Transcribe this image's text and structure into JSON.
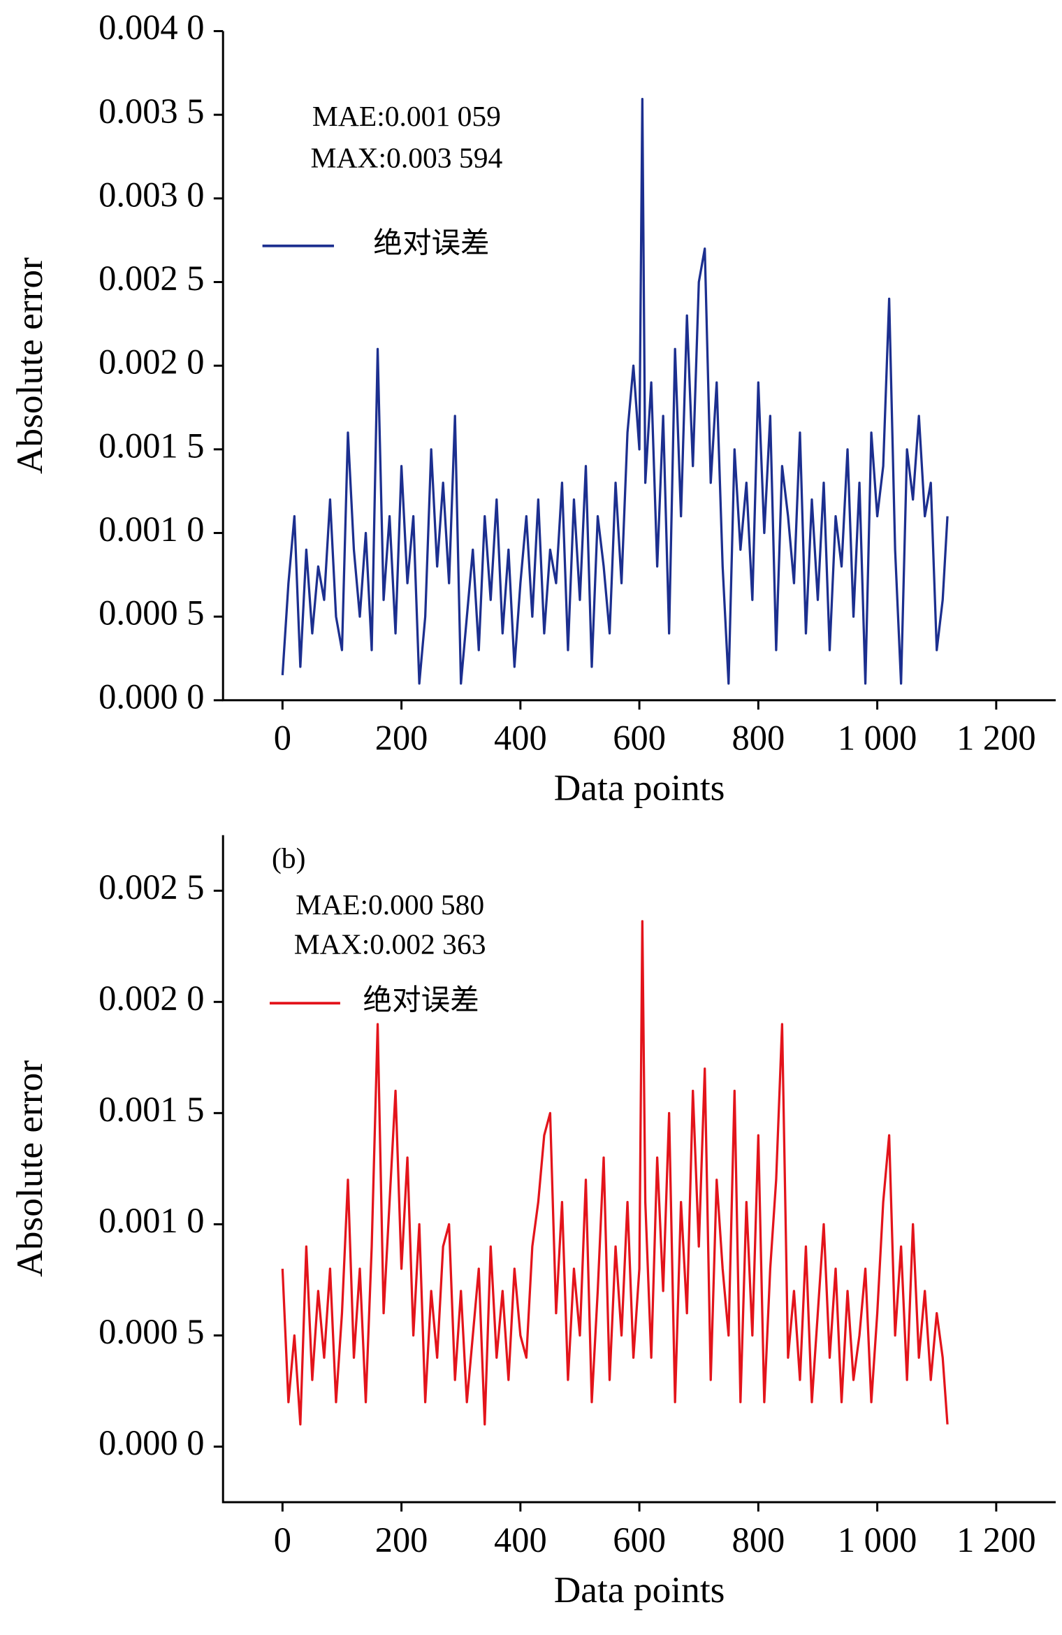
{
  "chart_data": [
    {
      "type": "line",
      "annotations": [
        "MAE:0.001 059",
        "MAX:0.003 594"
      ],
      "xlabel": "Data points",
      "ylabel": "Absolute error",
      "x": [
        0,
        10,
        20,
        30,
        40,
        50,
        60,
        70,
        80,
        90,
        100,
        110,
        120,
        130,
        140,
        150,
        160,
        170,
        180,
        190,
        200,
        210,
        220,
        230,
        240,
        250,
        260,
        270,
        280,
        290,
        300,
        310,
        320,
        330,
        340,
        350,
        360,
        370,
        380,
        390,
        400,
        410,
        420,
        430,
        440,
        450,
        460,
        470,
        480,
        490,
        500,
        510,
        520,
        530,
        540,
        550,
        560,
        570,
        580,
        590,
        600,
        605,
        610,
        620,
        630,
        640,
        650,
        660,
        670,
        680,
        690,
        700,
        710,
        720,
        730,
        740,
        750,
        760,
        770,
        780,
        790,
        800,
        810,
        820,
        830,
        840,
        850,
        860,
        870,
        880,
        890,
        900,
        910,
        920,
        930,
        940,
        950,
        960,
        970,
        980,
        990,
        1000,
        1010,
        1020,
        1030,
        1040,
        1050,
        1060,
        1070,
        1080,
        1090,
        1100,
        1110,
        1118
      ],
      "series": [
        {
          "name": "绝对误差",
          "color": "#1c2f8f",
          "values": [
            0.00015,
            0.0007,
            0.0011,
            0.0002,
            0.0009,
            0.0004,
            0.0008,
            0.0006,
            0.0012,
            0.0005,
            0.0003,
            0.0016,
            0.0009,
            0.0005,
            0.001,
            0.0003,
            0.0021,
            0.0006,
            0.0011,
            0.0004,
            0.0014,
            0.0007,
            0.0011,
            0.0001,
            0.0005,
            0.0015,
            0.0008,
            0.0013,
            0.0007,
            0.0017,
            0.0001,
            0.0005,
            0.0009,
            0.0003,
            0.0011,
            0.0006,
            0.0012,
            0.0004,
            0.0009,
            0.0002,
            0.0007,
            0.0011,
            0.0005,
            0.0012,
            0.0004,
            0.0009,
            0.0007,
            0.0013,
            0.0003,
            0.0012,
            0.0006,
            0.0014,
            0.0002,
            0.0011,
            0.0008,
            0.0004,
            0.0013,
            0.0007,
            0.0016,
            0.002,
            0.0015,
            0.003594,
            0.0013,
            0.0019,
            0.0008,
            0.0017,
            0.0004,
            0.0021,
            0.0011,
            0.0023,
            0.0014,
            0.0025,
            0.0027,
            0.0013,
            0.0019,
            0.0008,
            0.0001,
            0.0015,
            0.0009,
            0.0013,
            0.0006,
            0.0019,
            0.001,
            0.0017,
            0.0003,
            0.0014,
            0.0011,
            0.0007,
            0.0016,
            0.0004,
            0.0012,
            0.0006,
            0.0013,
            0.0003,
            0.0011,
            0.0008,
            0.0015,
            0.0005,
            0.0013,
            0.0001,
            0.0016,
            0.0011,
            0.0014,
            0.0024,
            0.0009,
            0.0001,
            0.0015,
            0.0012,
            0.0017,
            0.0011,
            0.0013,
            0.0003,
            0.0006,
            0.0011
          ]
        }
      ],
      "xlim": [
        -100,
        1300
      ],
      "xticks": [
        0,
        200,
        400,
        600,
        800,
        {
          "value": 1000,
          "label": "1 000"
        },
        {
          "value": 1200,
          "label": "1 200"
        }
      ],
      "ylim": [
        0,
        0.004
      ],
      "yticks": [
        {
          "value": 0,
          "label": "0.000 0"
        },
        {
          "value": 0.0005,
          "label": "0.000 5"
        },
        {
          "value": 0.001,
          "label": "0.001 0"
        },
        {
          "value": 0.0015,
          "label": "0.001 5"
        },
        {
          "value": 0.002,
          "label": "0.002 0"
        },
        {
          "value": 0.0025,
          "label": "0.002 5"
        },
        {
          "value": 0.003,
          "label": "0.003 0"
        },
        {
          "value": 0.0035,
          "label": "0.003 5"
        },
        {
          "value": 0.004,
          "label": "0.004 0"
        }
      ]
    },
    {
      "type": "line",
      "annotations": [
        "(b)",
        "MAE:0.000 580",
        "MAX:0.002 363"
      ],
      "xlabel": "Data points",
      "ylabel": "Absolute error",
      "x": [
        0,
        10,
        20,
        30,
        40,
        50,
        60,
        70,
        80,
        90,
        100,
        110,
        120,
        130,
        140,
        150,
        160,
        170,
        180,
        190,
        200,
        210,
        220,
        230,
        240,
        250,
        260,
        270,
        280,
        290,
        300,
        310,
        320,
        330,
        340,
        350,
        360,
        370,
        380,
        390,
        400,
        410,
        420,
        430,
        440,
        450,
        460,
        470,
        480,
        490,
        500,
        510,
        520,
        530,
        540,
        550,
        560,
        570,
        580,
        590,
        600,
        605,
        610,
        620,
        630,
        640,
        650,
        660,
        670,
        680,
        690,
        700,
        710,
        720,
        730,
        740,
        750,
        760,
        770,
        780,
        790,
        800,
        810,
        820,
        830,
        840,
        850,
        860,
        870,
        880,
        890,
        900,
        910,
        920,
        930,
        940,
        950,
        960,
        970,
        980,
        990,
        1000,
        1010,
        1020,
        1030,
        1040,
        1050,
        1060,
        1070,
        1080,
        1090,
        1100,
        1110,
        1118
      ],
      "series": [
        {
          "name": "绝对误差",
          "color": "#e3141b",
          "values": [
            0.0008,
            0.0002,
            0.0005,
            0.0001,
            0.0009,
            0.0003,
            0.0007,
            0.0004,
            0.0008,
            0.0002,
            0.0006,
            0.0012,
            0.0004,
            0.0008,
            0.0002,
            0.0009,
            0.0019,
            0.0006,
            0.0011,
            0.0016,
            0.0008,
            0.0013,
            0.0005,
            0.001,
            0.0002,
            0.0007,
            0.0004,
            0.0009,
            0.001,
            0.0003,
            0.0007,
            0.0002,
            0.0005,
            0.0008,
            0.0001,
            0.0009,
            0.0004,
            0.0007,
            0.0003,
            0.0008,
            0.0005,
            0.0004,
            0.0009,
            0.0011,
            0.0014,
            0.0015,
            0.0006,
            0.0011,
            0.0003,
            0.0008,
            0.0005,
            0.0012,
            0.0002,
            0.0007,
            0.0013,
            0.0003,
            0.0009,
            0.0005,
            0.0011,
            0.0004,
            0.0008,
            0.002363,
            0.0011,
            0.0004,
            0.0013,
            0.0007,
            0.0015,
            0.0002,
            0.0011,
            0.0006,
            0.0016,
            0.0009,
            0.0017,
            0.0003,
            0.0012,
            0.0008,
            0.0005,
            0.0016,
            0.0002,
            0.0011,
            0.0005,
            0.0014,
            0.0002,
            0.0008,
            0.0012,
            0.0019,
            0.0004,
            0.0007,
            0.0003,
            0.0009,
            0.0002,
            0.0006,
            0.001,
            0.0004,
            0.0008,
            0.0002,
            0.0007,
            0.0003,
            0.0005,
            0.0008,
            0.0002,
            0.0006,
            0.0011,
            0.0014,
            0.0005,
            0.0009,
            0.0003,
            0.001,
            0.0004,
            0.0007,
            0.0003,
            0.0006,
            0.0004,
            0.0001
          ]
        }
      ],
      "xlim": [
        -100,
        1300
      ],
      "xticks": [
        0,
        200,
        400,
        600,
        800,
        {
          "value": 1000,
          "label": "1 000"
        },
        {
          "value": 1200,
          "label": "1 200"
        }
      ],
      "ylim": [
        -0.00025,
        0.00275
      ],
      "yticks": [
        {
          "value": 0,
          "label": "0.000 0"
        },
        {
          "value": 0.0005,
          "label": "0.000 5"
        },
        {
          "value": 0.001,
          "label": "0.001 0"
        },
        {
          "value": 0.0015,
          "label": "0.001 5"
        },
        {
          "value": 0.002,
          "label": "0.002 0"
        },
        {
          "value": 0.0025,
          "label": "0.002 5"
        }
      ]
    }
  ]
}
